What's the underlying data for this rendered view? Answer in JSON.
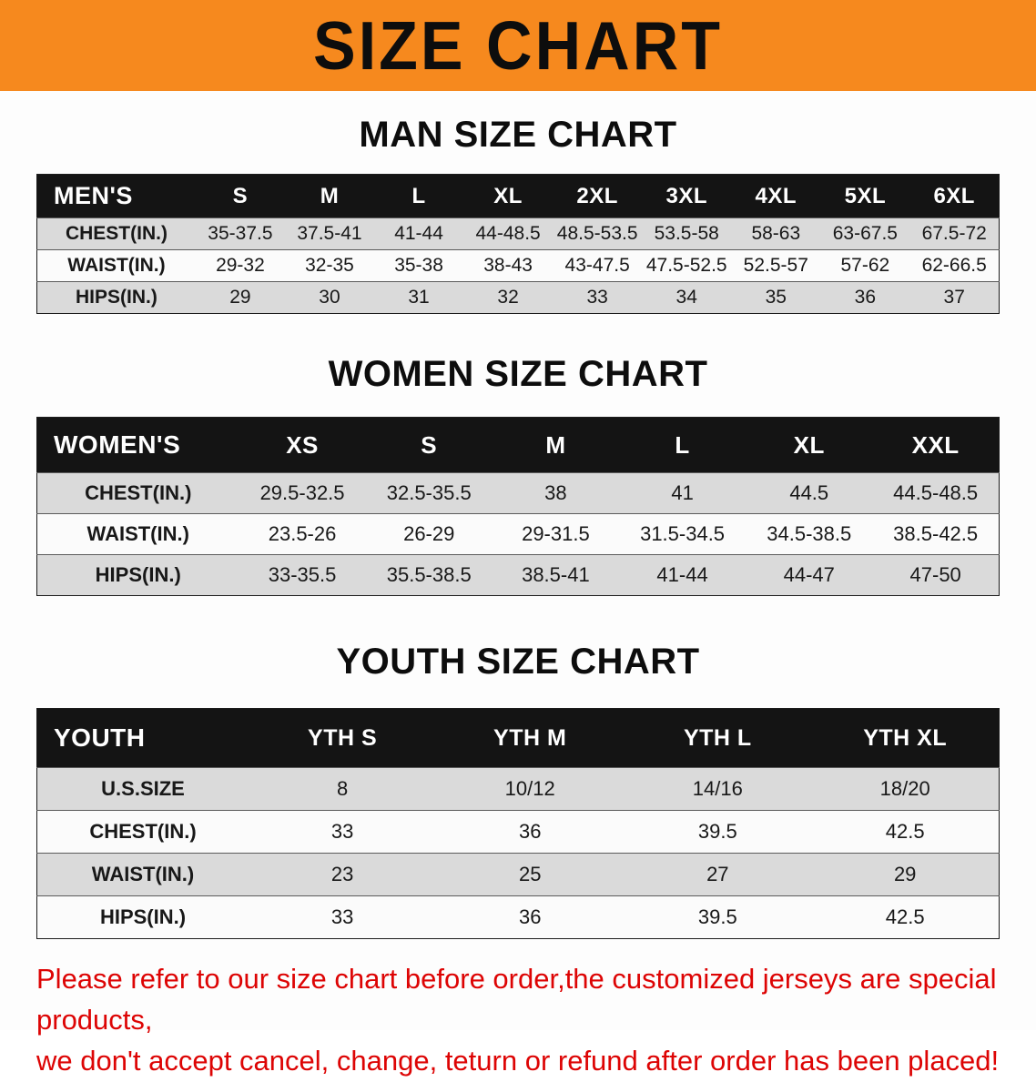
{
  "banner": {
    "title": "SIZE CHART",
    "bg_color": "#f6891e",
    "text_color": "#0d0d0d"
  },
  "colors": {
    "table_header_bg": "#141414",
    "row_stripe_gray": "#dadada",
    "row_stripe_white": "#fbfbfb",
    "disclaimer_red": "#dd0404"
  },
  "sections": [
    {
      "heading": "MAN SIZE CHART",
      "table": {
        "header": [
          "MEN'S",
          "S",
          "M",
          "L",
          "XL",
          "2XL",
          "3XL",
          "4XL",
          "5XL",
          "6XL"
        ],
        "rows": [
          {
            "label": "CHEST(IN.)",
            "values": [
              "35-37.5",
              "37.5-41",
              "41-44",
              "44-48.5",
              "48.5-53.5",
              "53.5-58",
              "58-63",
              "63-67.5",
              "67.5-72"
            ]
          },
          {
            "label": "WAIST(IN.)",
            "values": [
              "29-32",
              "32-35",
              "35-38",
              "38-43",
              "43-47.5",
              "47.5-52.5",
              "52.5-57",
              "57-62",
              "62-66.5"
            ]
          },
          {
            "label": "HIPS(IN.)",
            "values": [
              "29",
              "30",
              "31",
              "32",
              "33",
              "34",
              "35",
              "36",
              "37"
            ]
          }
        ]
      }
    },
    {
      "heading": "WOMEN SIZE CHART",
      "table": {
        "header": [
          "WOMEN'S",
          "XS",
          "S",
          "M",
          "L",
          "XL",
          "XXL"
        ],
        "rows": [
          {
            "label": "CHEST(IN.)",
            "values": [
              "29.5-32.5",
              "32.5-35.5",
              "38",
              "41",
              "44.5",
              "44.5-48.5"
            ]
          },
          {
            "label": "WAIST(IN.)",
            "values": [
              "23.5-26",
              "26-29",
              "29-31.5",
              "31.5-34.5",
              "34.5-38.5",
              "38.5-42.5"
            ]
          },
          {
            "label": "HIPS(IN.)",
            "values": [
              "33-35.5",
              "35.5-38.5",
              "38.5-41",
              "41-44",
              "44-47",
              "47-50"
            ]
          }
        ]
      }
    },
    {
      "heading": "YOUTH SIZE CHART",
      "table": {
        "header": [
          "YOUTH",
          "YTH S",
          "YTH M",
          "YTH L",
          "YTH XL"
        ],
        "rows": [
          {
            "label": "U.S.SIZE",
            "values": [
              "8",
              "10/12",
              "14/16",
              "18/20"
            ]
          },
          {
            "label": "CHEST(IN.)",
            "values": [
              "33",
              "36",
              "39.5",
              "42.5"
            ]
          },
          {
            "label": "WAIST(IN.)",
            "values": [
              "23",
              "25",
              "27",
              "29"
            ]
          },
          {
            "label": "HIPS(IN.)",
            "values": [
              "33",
              "36",
              "39.5",
              "42.5"
            ]
          }
        ]
      }
    }
  ],
  "disclaimer": {
    "lines": [
      "Please refer to our size chart before order,the customized jerseys are special products,",
      "we don't accept cancel, change, teturn or refund after order has been placed!"
    ]
  }
}
